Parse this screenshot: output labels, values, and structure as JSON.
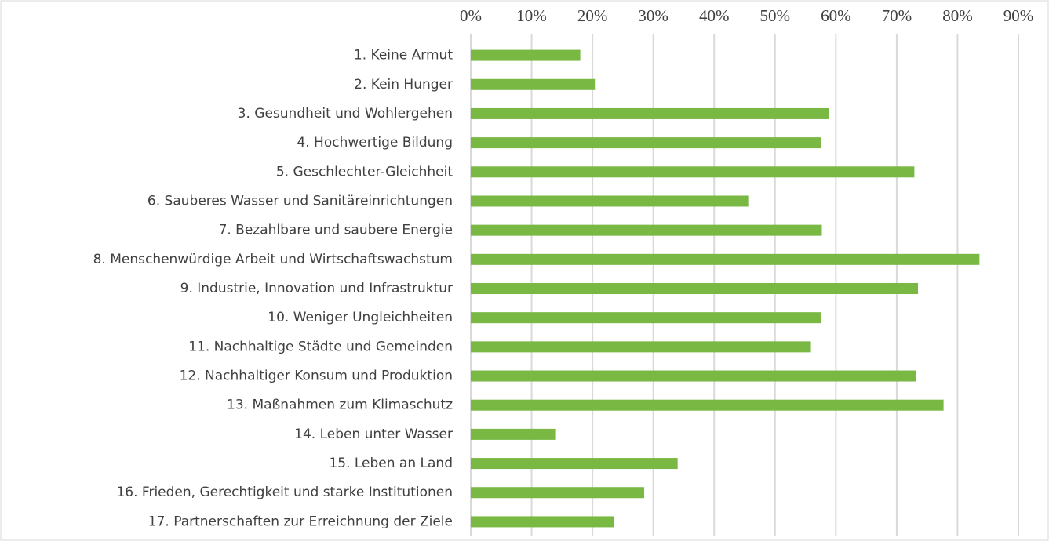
{
  "chart_data": {
    "type": "bar",
    "orientation": "horizontal",
    "categories": [
      "1. Keine Armut",
      "2. Kein Hunger",
      "3. Gesundheit und Wohlergehen",
      "4. Hochwertige Bildung",
      "5. Geschlechter-Gleichheit",
      "6. Sauberes Wasser und Sanitäreinrichtungen",
      "7. Bezahlbare und saubere Energie",
      "8. Menschenwürdige Arbeit und Wirtschaftswachstum",
      "9. Industrie, Innovation und Infrastruktur",
      "10. Weniger Ungleichheiten",
      "11. Nachhaltige Städte und Gemeinden",
      "12. Nachhaltiger Konsum und Produktion",
      "13. Maßnahmen zum Klimaschutz",
      "14. Leben unter Wasser",
      "15. Leben an Land",
      "16. Frieden, Gerechtigkeit und starke Institutionen",
      "17. Partnerschaften zur Erreichnung der Ziele"
    ],
    "values": [
      18.0,
      20.4,
      58.8,
      57.6,
      72.9,
      45.6,
      57.7,
      83.6,
      73.5,
      57.6,
      55.9,
      73.2,
      77.7,
      14.0,
      34.0,
      28.5,
      23.6
    ],
    "color": "#78b843",
    "xlim": [
      0,
      90
    ],
    "xticks": [
      {
        "value": 0,
        "label": "0%"
      },
      {
        "value": 10,
        "label": "10%"
      },
      {
        "value": 20,
        "label": "20%"
      },
      {
        "value": 30,
        "label": "30%"
      },
      {
        "value": 40,
        "label": "40%"
      },
      {
        "value": 50,
        "label": "50%"
      },
      {
        "value": 60,
        "label": "60%"
      },
      {
        "value": 70,
        "label": "70%"
      },
      {
        "value": 80,
        "label": "80%"
      },
      {
        "value": 90,
        "label": "90%"
      }
    ],
    "grid": true
  }
}
